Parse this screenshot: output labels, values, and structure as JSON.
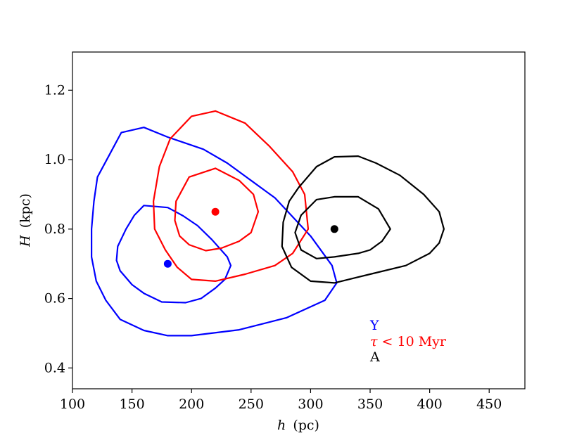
{
  "chart_data": {
    "type": "contour",
    "xlabel_var": "h",
    "xlabel_unit": "(pc)",
    "ylabel_var": "H",
    "ylabel_unit": "(kpc)",
    "xlim": [
      100,
      480
    ],
    "ylim": [
      0.34,
      1.31
    ],
    "xticks": [
      100,
      150,
      200,
      250,
      300,
      350,
      400,
      450
    ],
    "yticks": [
      0.4,
      0.6,
      0.8,
      1.0,
      1.2
    ],
    "xtick_labels": [
      "100",
      "150",
      "200",
      "250",
      "300",
      "350",
      "400",
      "450"
    ],
    "ytick_labels": [
      "0.4",
      "0.6",
      "0.8",
      "1.0",
      "1.2"
    ],
    "grid": false,
    "legend_placement": "lower-right",
    "series": [
      {
        "name": "Y",
        "color": "#0000ff",
        "center": [
          180,
          0.7
        ],
        "contours": [
          [
            [
              160,
              0.868
            ],
            [
              180,
              0.862
            ],
            [
              193,
              0.838
            ],
            [
              205,
              0.81
            ],
            [
              217,
              0.77
            ],
            [
              230,
              0.72
            ],
            [
              233,
              0.695
            ],
            [
              228,
              0.655
            ],
            [
              220,
              0.63
            ],
            [
              208,
              0.6
            ],
            [
              195,
              0.588
            ],
            [
              175,
              0.59
            ],
            [
              160,
              0.615
            ],
            [
              150,
              0.64
            ],
            [
              140,
              0.68
            ],
            [
              137,
              0.71
            ],
            [
              138,
              0.75
            ],
            [
              145,
              0.8
            ],
            [
              152,
              0.84
            ],
            [
              160,
              0.868
            ]
          ],
          [
            [
              160,
              1.093
            ],
            [
              180,
              1.065
            ],
            [
              210,
              1.03
            ],
            [
              230,
              0.99
            ],
            [
              250,
              0.94
            ],
            [
              270,
              0.89
            ],
            [
              300,
              0.78
            ],
            [
              318,
              0.695
            ],
            [
              322,
              0.645
            ],
            [
              312,
              0.595
            ],
            [
              280,
              0.545
            ],
            [
              240,
              0.51
            ],
            [
              200,
              0.493
            ],
            [
              180,
              0.493
            ],
            [
              160,
              0.508
            ],
            [
              140,
              0.54
            ],
            [
              128,
              0.595
            ],
            [
              120,
              0.65
            ],
            [
              116,
              0.72
            ],
            [
              116,
              0.8
            ],
            [
              118,
              0.88
            ],
            [
              121,
              0.95
            ],
            [
              132,
              1.02
            ],
            [
              141,
              1.078
            ],
            [
              160,
              1.093
            ]
          ]
        ]
      },
      {
        "name": "τ < 10 Myr",
        "label_prefix": "τ",
        "label_suffix": " < 10 Myr",
        "color": "#ff0000",
        "center": [
          220,
          0.85
        ],
        "contours": [
          [
            [
              220,
              0.975
            ],
            [
              240,
              0.94
            ],
            [
              252,
              0.9
            ],
            [
              256,
              0.85
            ],
            [
              250,
              0.79
            ],
            [
              240,
              0.765
            ],
            [
              225,
              0.745
            ],
            [
              212,
              0.738
            ],
            [
              198,
              0.755
            ],
            [
              190,
              0.78
            ],
            [
              186,
              0.825
            ],
            [
              187,
              0.88
            ],
            [
              198,
              0.95
            ],
            [
              220,
              0.975
            ]
          ],
          [
            [
              220,
              1.14
            ],
            [
              245,
              1.105
            ],
            [
              265,
              1.04
            ],
            [
              285,
              0.965
            ],
            [
              295,
              0.9
            ],
            [
              298,
              0.8
            ],
            [
              285,
              0.73
            ],
            [
              270,
              0.695
            ],
            [
              245,
              0.67
            ],
            [
              220,
              0.65
            ],
            [
              200,
              0.655
            ],
            [
              188,
              0.69
            ],
            [
              178,
              0.74
            ],
            [
              169,
              0.8
            ],
            [
              168,
              0.88
            ],
            [
              173,
              0.98
            ],
            [
              182,
              1.06
            ],
            [
              200,
              1.125
            ],
            [
              220,
              1.14
            ]
          ]
        ]
      },
      {
        "name": "A",
        "color": "#000000",
        "center": [
          320,
          0.8
        ],
        "contours": [
          [
            [
              320,
              0.893
            ],
            [
              340,
              0.893
            ],
            [
              357,
              0.858
            ],
            [
              367,
              0.8
            ],
            [
              360,
              0.765
            ],
            [
              350,
              0.74
            ],
            [
              340,
              0.73
            ],
            [
              320,
              0.72
            ],
            [
              305,
              0.715
            ],
            [
              292,
              0.74
            ],
            [
              287,
              0.79
            ],
            [
              292,
              0.84
            ],
            [
              305,
              0.885
            ],
            [
              320,
              0.893
            ]
          ],
          [
            [
              320,
              1.008
            ],
            [
              340,
              1.01
            ],
            [
              355,
              0.99
            ],
            [
              375,
              0.955
            ],
            [
              395,
              0.9
            ],
            [
              408,
              0.85
            ],
            [
              412,
              0.8
            ],
            [
              408,
              0.76
            ],
            [
              400,
              0.73
            ],
            [
              380,
              0.695
            ],
            [
              350,
              0.67
            ],
            [
              320,
              0.645
            ],
            [
              300,
              0.65
            ],
            [
              284,
              0.69
            ],
            [
              276,
              0.75
            ],
            [
              277,
              0.82
            ],
            [
              282,
              0.88
            ],
            [
              290,
              0.92
            ],
            [
              305,
              0.98
            ],
            [
              320,
              1.008
            ]
          ]
        ]
      }
    ]
  }
}
